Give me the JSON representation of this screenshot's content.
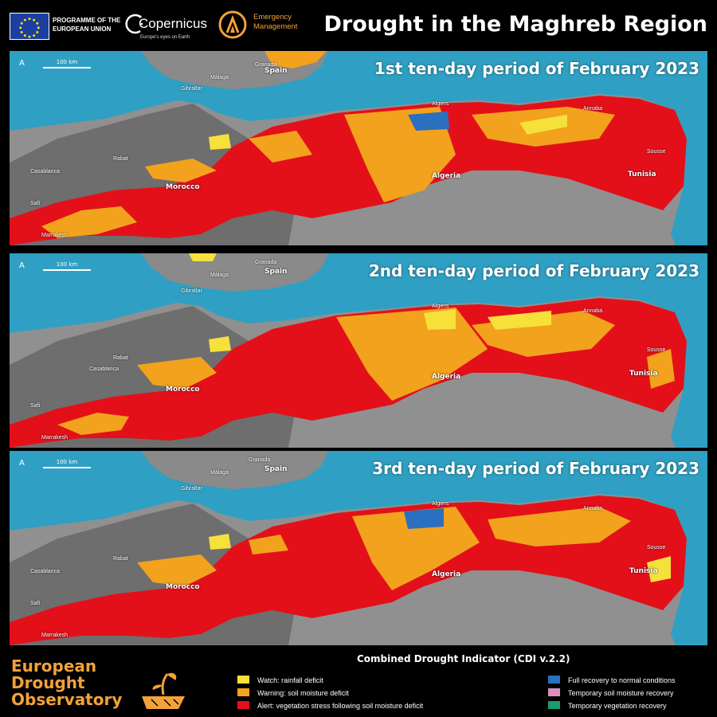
{
  "header": {
    "eu_programme": [
      "PROGRAMME OF THE",
      "EUROPEAN UNION"
    ],
    "copernicus_name": "Copernicus",
    "copernicus_tagline": "Europe's eyes on Earth",
    "emergency": [
      "Emergency",
      "Management"
    ],
    "title": "Drought in the Maghreb Region"
  },
  "panels": [
    {
      "title": "1st ten-day period of February 2023"
    },
    {
      "title": "2nd ten-day period of February 2023"
    },
    {
      "title": "3rd ten-day period of February 2023"
    }
  ],
  "map_labels": {
    "north": "A",
    "scale": "100 km",
    "spain": "Spain",
    "granada": "Granada",
    "malaga": "Málaga",
    "gibraltar": "Gibraltar",
    "algiers": "Algiers",
    "annaba": "Annaba",
    "sousse": "Sousse",
    "casablanca": "Casablanca",
    "rabat": "Rabat",
    "safi": "Safi",
    "marrakesh": "Marrakesh",
    "morocco": "Morocco",
    "algeria": "Algeria",
    "tunisia": "Tunisia"
  },
  "footer": {
    "observatory": [
      "European",
      "Drought",
      "Observatory"
    ],
    "legend_title": "Combined Drought Indicator (CDI v.2.2)",
    "legend": [
      {
        "label": "Watch: rainfall deficit",
        "color": "#f6e03a"
      },
      {
        "label": "Warning: soil moisture deficit",
        "color": "#f2a21c"
      },
      {
        "label": "Alert: vegetation stress following soil moisture deficit",
        "color": "#e3101a"
      },
      {
        "label": "Full recovery to normal conditions",
        "color": "#2a6fc0"
      },
      {
        "label": "Temporary soil moisture recovery",
        "color": "#d98fc0"
      },
      {
        "label": "Temporary vegetation recovery",
        "color": "#1a9c6c"
      }
    ]
  },
  "colors": {
    "sea": "#2fa0c3",
    "land": "#8d8d8d",
    "accent": "#f2a23a"
  }
}
